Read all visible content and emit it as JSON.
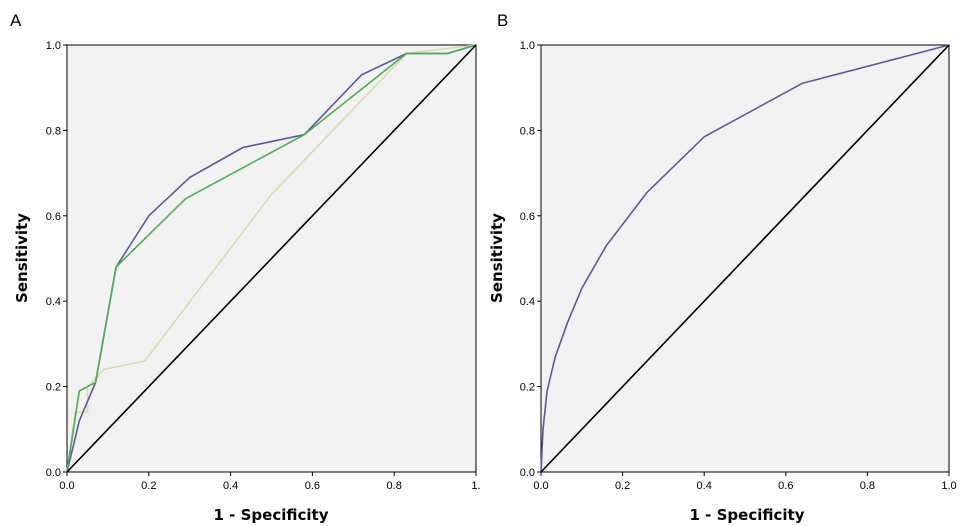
{
  "chart_data": [
    {
      "panel": "A",
      "type": "line",
      "xlabel": "1 - Specificity",
      "ylabel": "Sensitivity",
      "xlim": [
        0,
        1
      ],
      "ylim": [
        0,
        1
      ],
      "xticks": [
        "0.0",
        "0.2",
        "0.4",
        "0.6",
        "0.8",
        "1."
      ],
      "yticks": [
        "0.0",
        "0.2",
        "0.4",
        "0.6",
        "0.8",
        "1.0"
      ],
      "grid": false,
      "series": [
        {
          "color": "#d8ddb0",
          "x": [
            0,
            0.02,
            0.05,
            0.05,
            0.09,
            0.19,
            0.5,
            0.83,
            1.0
          ],
          "y": [
            0,
            0.14,
            0.14,
            0.2,
            0.24,
            0.26,
            0.65,
            0.98,
            1.0
          ]
        },
        {
          "color": "#5a5a9a",
          "x": [
            0,
            0.03,
            0.07,
            0.12,
            0.2,
            0.3,
            0.43,
            0.58,
            0.72,
            0.83,
            0.93,
            1.0
          ],
          "y": [
            0,
            0.12,
            0.21,
            0.48,
            0.6,
            0.69,
            0.76,
            0.79,
            0.93,
            0.98,
            0.98,
            1.0
          ]
        },
        {
          "color": "#4caf50",
          "x": [
            0,
            0.03,
            0.07,
            0.12,
            0.29,
            0.58,
            0.83,
            0.93,
            1.0
          ],
          "y": [
            0,
            0.19,
            0.21,
            0.48,
            0.64,
            0.79,
            0.98,
            0.98,
            1.0
          ]
        },
        {
          "color": "#000000",
          "x": [
            0,
            1
          ],
          "y": [
            0,
            1
          ]
        }
      ]
    },
    {
      "panel": "B",
      "type": "line",
      "xlabel": "1 - Specificity",
      "ylabel": "Sensitivity",
      "xlim": [
        0,
        1
      ],
      "ylim": [
        0,
        1
      ],
      "xticks": [
        "0.0",
        "0.2",
        "0.4",
        "0.6",
        "0.8",
        "1.0"
      ],
      "yticks": [
        "0.0",
        "0.2",
        "0.4",
        "0.6",
        "0.8",
        "1.0"
      ],
      "grid": false,
      "series": [
        {
          "color": "#5a5a9a",
          "x": [
            0,
            0.005,
            0.015,
            0.035,
            0.065,
            0.1,
            0.16,
            0.26,
            0.4,
            0.64,
            1.0
          ],
          "y": [
            0,
            0.1,
            0.19,
            0.27,
            0.35,
            0.43,
            0.53,
            0.655,
            0.785,
            0.91,
            1.0
          ]
        },
        {
          "color": "#000000",
          "x": [
            0,
            1
          ],
          "y": [
            0,
            1
          ]
        }
      ]
    }
  ]
}
